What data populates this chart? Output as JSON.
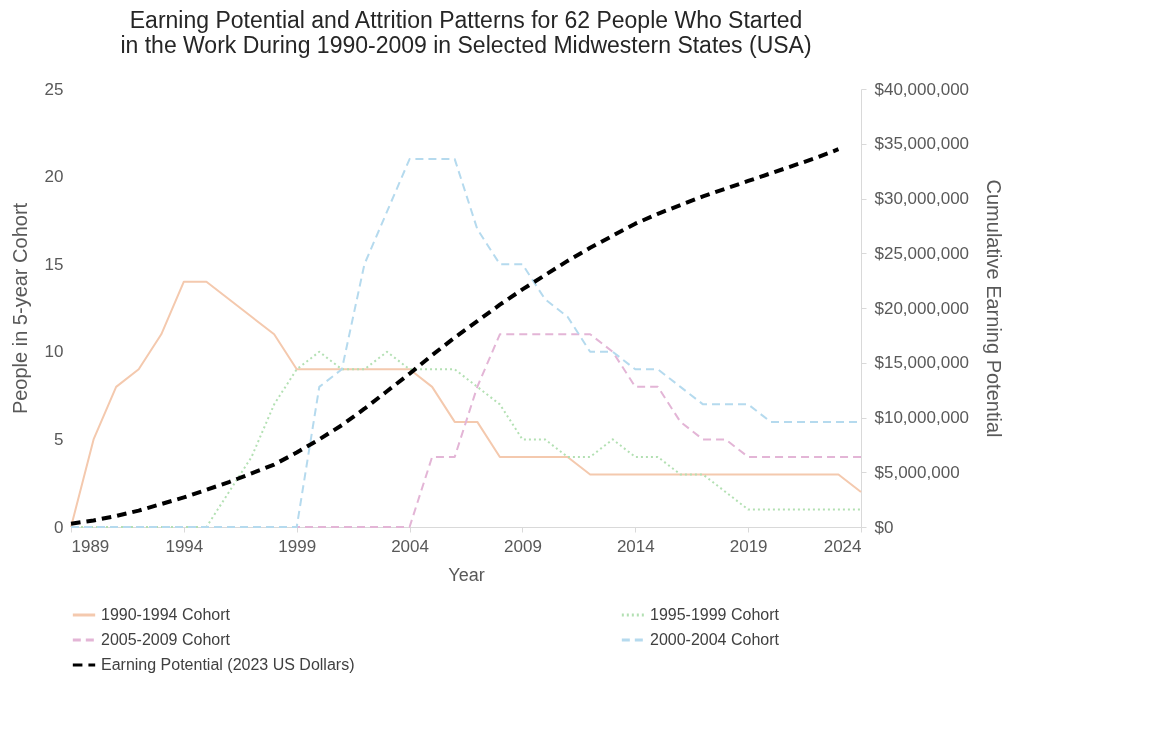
{
  "chart_data": {
    "type": "line",
    "title": "Earning Potential and Attrition Patterns for 62 People Who Started\nin the Work During 1990-2009 in Selected Midwestern States (USA)",
    "xlabel": "Year",
    "ylabel": "People in 5-year Cohort",
    "y2label": "Cumulative Earning Potential",
    "x": [
      1989,
      1990,
      1991,
      1992,
      1993,
      1994,
      1995,
      1996,
      1997,
      1998,
      1999,
      2000,
      2001,
      2002,
      2003,
      2004,
      2005,
      2006,
      2007,
      2008,
      2009,
      2010,
      2011,
      2012,
      2013,
      2014,
      2015,
      2016,
      2017,
      2018,
      2019,
      2020,
      2021,
      2022,
      2023,
      2024
    ],
    "xlim": [
      1989,
      2024
    ],
    "xticks": [
      1989,
      1994,
      1999,
      2004,
      2009,
      2014,
      2019,
      2024
    ],
    "ylim": [
      0,
      25
    ],
    "yticks": [
      0,
      5,
      10,
      15,
      20,
      25
    ],
    "y2lim": [
      0,
      40000000
    ],
    "y2ticks": [
      {
        "value": 0,
        "label": "$0"
      },
      {
        "value": 5000000,
        "label": "$5,000,000"
      },
      {
        "value": 10000000,
        "label": "$10,000,000"
      },
      {
        "value": 15000000,
        "label": "$15,000,000"
      },
      {
        "value": 20000000,
        "label": "$20,000,000"
      },
      {
        "value": 25000000,
        "label": "$25,000,000"
      },
      {
        "value": 30000000,
        "label": "$30,000,000"
      },
      {
        "value": 35000000,
        "label": "$35,000,000"
      },
      {
        "value": 40000000,
        "label": "$40,000,000"
      }
    ],
    "legend": "bottom",
    "marker": "none",
    "series": [
      {
        "name": "1990-1994 Cohort",
        "color": "#f4c9ae",
        "line_style": "solid",
        "values": [
          0,
          5,
          8,
          9,
          11,
          14,
          14,
          13,
          12,
          11,
          9,
          9,
          9,
          9,
          9,
          9,
          8,
          6,
          6,
          4,
          4,
          4,
          4,
          3,
          3,
          3,
          3,
          3,
          3,
          3,
          3,
          3,
          3,
          3,
          3,
          2
        ]
      },
      {
        "name": "1995-1999 Cohort",
        "color": "#b3e0b3",
        "line_style": "dotted",
        "values": [
          0,
          0,
          0,
          0,
          0,
          0,
          0,
          2,
          4,
          7,
          9,
          10,
          9,
          9,
          10,
          9,
          9,
          9,
          8,
          7,
          5,
          5,
          4,
          4,
          5,
          4,
          4,
          3,
          3,
          2,
          1,
          1,
          1,
          1,
          1,
          1
        ]
      },
      {
        "name": "2005-2009 Cohort",
        "color": "#e3b5d6",
        "line_style": "dashed",
        "values": [
          0,
          0,
          0,
          0,
          0,
          0,
          0,
          0,
          0,
          0,
          0,
          0,
          0,
          0,
          0,
          0,
          4,
          4,
          8,
          11,
          11,
          11,
          11,
          11,
          10,
          8,
          8,
          6,
          5,
          5,
          4,
          4,
          4,
          4,
          4,
          4
        ]
      },
      {
        "name": "2000-2004 Cohort",
        "color": "#b5daee",
        "line_style": "dashed",
        "values": [
          0,
          0,
          0,
          0,
          0,
          0,
          0,
          0,
          0,
          0,
          0,
          8,
          9,
          15,
          18,
          21,
          21,
          21,
          17,
          15,
          15,
          13,
          12,
          10,
          10,
          9,
          9,
          8,
          7,
          7,
          7,
          6,
          6,
          6,
          6,
          6
        ]
      },
      {
        "name": "Earning Potential (2023 US Dollars)",
        "color": "#000000",
        "line_style": "dashed",
        "axis": "y2",
        "values": [
          300000,
          600000,
          1000000,
          1500000,
          2100000,
          2700000,
          3400000,
          4100000,
          4900000,
          5700000,
          6800000,
          8000000,
          9300000,
          10800000,
          12400000,
          14000000,
          15700000,
          17300000,
          18800000,
          20300000,
          21700000,
          23000000,
          24300000,
          25500000,
          26600000,
          27700000,
          28600000,
          29400000,
          30200000,
          30900000,
          31600000,
          32300000,
          33000000,
          33700000,
          34500000,
          null
        ]
      }
    ]
  }
}
